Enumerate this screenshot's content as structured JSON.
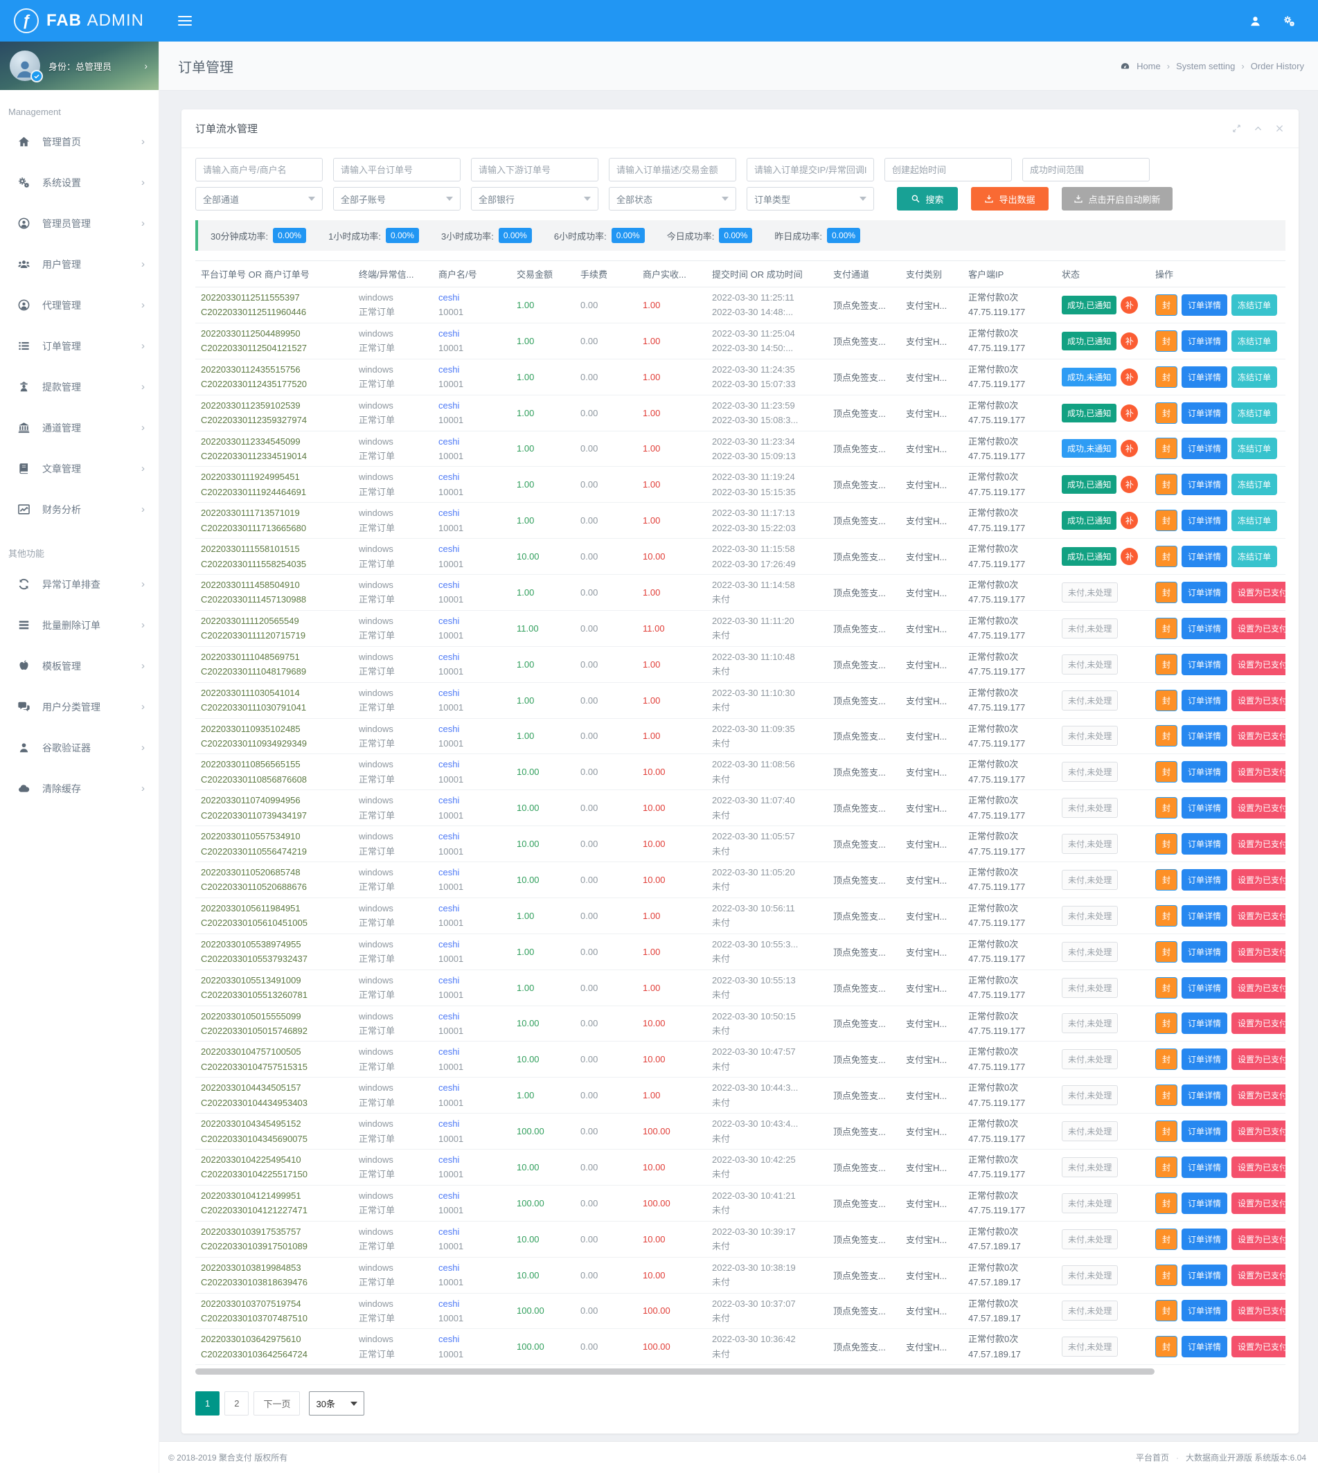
{
  "topbar": {
    "logo_primary": "FAB",
    "logo_secondary": "ADMIN"
  },
  "user_panel": {
    "label": "身份：总管理员"
  },
  "sidebar": {
    "groups": [
      {
        "header": "Management",
        "items": [
          {
            "key": "admin-home",
            "icon": "home",
            "label": "管理首页"
          },
          {
            "key": "system-settings",
            "icon": "gears",
            "label": "系统设置"
          },
          {
            "key": "admin-manage",
            "icon": "user-circle",
            "label": "管理员管理"
          },
          {
            "key": "user-manage",
            "icon": "users",
            "label": "用户管理"
          },
          {
            "key": "agent-manage",
            "icon": "user-circle",
            "label": "代理管理"
          },
          {
            "key": "order-manage",
            "icon": "list",
            "label": "订单管理"
          },
          {
            "key": "withdraw-manage",
            "icon": "user-secret",
            "label": "提款管理"
          },
          {
            "key": "channel-manage",
            "icon": "bank",
            "label": "通道管理"
          },
          {
            "key": "article-manage",
            "icon": "book",
            "label": "文章管理"
          },
          {
            "key": "finance-analysis",
            "icon": "chart-line",
            "label": "财务分析"
          }
        ]
      },
      {
        "header": "其他功能",
        "items": [
          {
            "key": "abnormal-order-check",
            "icon": "refresh",
            "label": "异常订单排查"
          },
          {
            "key": "batch-delete-order",
            "icon": "bars",
            "label": "批量删除订单"
          },
          {
            "key": "template-manage",
            "icon": "apple",
            "label": "模板管理"
          },
          {
            "key": "user-category-manage",
            "icon": "comments",
            "label": "用户分类管理"
          },
          {
            "key": "google-authenticator",
            "icon": "user",
            "label": "谷歌验证器"
          },
          {
            "key": "clear-cache",
            "icon": "cloud",
            "label": "清除缓存"
          }
        ]
      }
    ]
  },
  "page": {
    "title": "订单管理",
    "breadcrumb": [
      "Home",
      "System setting",
      "Order History"
    ]
  },
  "panel": {
    "title": "订单流水管理"
  },
  "filters": {
    "inputs": [
      {
        "key": "merchant",
        "placeholder": "请输入商户号/商户名"
      },
      {
        "key": "platform-order",
        "placeholder": "请输入平台订单号"
      },
      {
        "key": "downstream-order",
        "placeholder": "请输入下游订单号"
      },
      {
        "key": "desc-amount",
        "placeholder": "请输入订单描述/交易金额"
      },
      {
        "key": "submit-ip",
        "placeholder": "请输入订单提交IP/异常回调IP"
      },
      {
        "key": "create-time",
        "placeholder": "创建起始时间"
      },
      {
        "key": "success-time",
        "placeholder": "成功时间范围"
      }
    ],
    "selects": [
      {
        "key": "channel",
        "label": "全部通道"
      },
      {
        "key": "sub-account",
        "label": "全部子账号"
      },
      {
        "key": "bank",
        "label": "全部银行"
      },
      {
        "key": "status",
        "label": "全部状态"
      },
      {
        "key": "order-type",
        "label": "订单类型"
      }
    ],
    "buttons": {
      "search": "搜索",
      "export": "导出数据",
      "auto_refresh": "点击开启自动刷新"
    }
  },
  "stats": [
    {
      "label": "30分钟成功率:",
      "value": "0.00%"
    },
    {
      "label": "1小时成功率:",
      "value": "0.00%"
    },
    {
      "label": "3小时成功率:",
      "value": "0.00%"
    },
    {
      "label": "6小时成功率:",
      "value": "0.00%"
    },
    {
      "label": "今日成功率:",
      "value": "0.00%"
    },
    {
      "label": "昨日成功率:",
      "value": "0.00%"
    }
  ],
  "table": {
    "columns": [
      "平台订单号 OR 商户订单号",
      "终端/异常信...",
      "商户名/号",
      "交易金额",
      "手续费",
      "商户实收...",
      "提交时间 OR 成功时间",
      "支付通道",
      "支付类别",
      "客户端IP",
      "状态",
      "操作"
    ],
    "shared": {
      "terminal": "windows",
      "order_type": "正常订单",
      "merchant": "ceshi",
      "merchant_no": "10001",
      "fee": "0.00",
      "channel": "顶点免签支...",
      "pay_class": "支付宝H...",
      "pay_note": "正常付款0次",
      "patch": "补"
    },
    "actions": {
      "ok": [
        "封",
        "订单详情",
        "冻结订单"
      ],
      "unpaid": [
        "封",
        "订单详情",
        "设置为已支付"
      ]
    },
    "rows": [
      {
        "pid": "20220330112511555397",
        "cid": "C20220330112511960446",
        "amt": "1.00",
        "t1": "2022-03-30 11:25:11",
        "t2": "2022-03-30 14:48:...",
        "status": "成功,已通知",
        "state": "ok-notified",
        "ip": "47.75.119.177"
      },
      {
        "pid": "20220330112504489950",
        "cid": "C20220330112504121527",
        "amt": "1.00",
        "t1": "2022-03-30 11:25:04",
        "t2": "2022-03-30 14:50:...",
        "status": "成功,已通知",
        "state": "ok-notified",
        "ip": "47.75.119.177"
      },
      {
        "pid": "20220330112435515756",
        "cid": "C20220330112435177520",
        "amt": "1.00",
        "t1": "2022-03-30 11:24:35",
        "t2": "2022-03-30 15:07:33",
        "status": "成功,未通知",
        "state": "ok-unnotified",
        "ip": "47.75.119.177"
      },
      {
        "pid": "20220330112359102539",
        "cid": "C20220330112359327974",
        "amt": "1.00",
        "t1": "2022-03-30 11:23:59",
        "t2": "2022-03-30 15:08:3...",
        "status": "成功,已通知",
        "state": "ok-notified",
        "ip": "47.75.119.177"
      },
      {
        "pid": "20220330112334545099",
        "cid": "C20220330112334519014",
        "amt": "1.00",
        "t1": "2022-03-30 11:23:34",
        "t2": "2022-03-30 15:09:13",
        "status": "成功,未通知",
        "state": "ok-unnotified",
        "ip": "47.75.119.177"
      },
      {
        "pid": "20220330111924995451",
        "cid": "C20220330111924464691",
        "amt": "1.00",
        "t1": "2022-03-30 11:19:24",
        "t2": "2022-03-30 15:15:35",
        "status": "成功,已通知",
        "state": "ok-notified",
        "ip": "47.75.119.177"
      },
      {
        "pid": "20220330111713571019",
        "cid": "C20220330111713665680",
        "amt": "1.00",
        "t1": "2022-03-30 11:17:13",
        "t2": "2022-03-30 15:22:03",
        "status": "成功,已通知",
        "state": "ok-notified",
        "ip": "47.75.119.177"
      },
      {
        "pid": "20220330111558101515",
        "cid": "C20220330111558254035",
        "amt": "10.00",
        "t1": "2022-03-30 11:15:58",
        "t2": "2022-03-30 17:26:49",
        "status": "成功,已通知",
        "state": "ok-notified",
        "ip": "47.75.119.177"
      },
      {
        "pid": "20220330111458504910",
        "cid": "C20220330111457130988",
        "amt": "1.00",
        "t1": "2022-03-30 11:14:58",
        "t2": "未付",
        "status": "未付,未处理",
        "state": "unpaid",
        "ip": "47.75.119.177"
      },
      {
        "pid": "20220330111120565549",
        "cid": "C20220330111120715719",
        "amt": "11.00",
        "t1": "2022-03-30 11:11:20",
        "t2": "未付",
        "status": "未付,未处理",
        "state": "unpaid",
        "ip": "47.75.119.177"
      },
      {
        "pid": "20220330111048569751",
        "cid": "C20220330111048179689",
        "amt": "1.00",
        "t1": "2022-03-30 11:10:48",
        "t2": "未付",
        "status": "未付,未处理",
        "state": "unpaid",
        "ip": "47.75.119.177"
      },
      {
        "pid": "20220330111030541014",
        "cid": "C20220330111030791041",
        "amt": "1.00",
        "t1": "2022-03-30 11:10:30",
        "t2": "未付",
        "status": "未付,未处理",
        "state": "unpaid",
        "ip": "47.75.119.177"
      },
      {
        "pid": "20220330110935102485",
        "cid": "C20220330110934929349",
        "amt": "1.00",
        "t1": "2022-03-30 11:09:35",
        "t2": "未付",
        "status": "未付,未处理",
        "state": "unpaid",
        "ip": "47.75.119.177"
      },
      {
        "pid": "20220330110856565155",
        "cid": "C20220330110856876608",
        "amt": "10.00",
        "t1": "2022-03-30 11:08:56",
        "t2": "未付",
        "status": "未付,未处理",
        "state": "unpaid",
        "ip": "47.75.119.177"
      },
      {
        "pid": "20220330110740994956",
        "cid": "C20220330110739434197",
        "amt": "10.00",
        "t1": "2022-03-30 11:07:40",
        "t2": "未付",
        "status": "未付,未处理",
        "state": "unpaid",
        "ip": "47.75.119.177"
      },
      {
        "pid": "20220330110557534910",
        "cid": "C20220330110556474219",
        "amt": "10.00",
        "t1": "2022-03-30 11:05:57",
        "t2": "未付",
        "status": "未付,未处理",
        "state": "unpaid",
        "ip": "47.75.119.177"
      },
      {
        "pid": "20220330110520685748",
        "cid": "C20220330110520688676",
        "amt": "10.00",
        "t1": "2022-03-30 11:05:20",
        "t2": "未付",
        "status": "未付,未处理",
        "state": "unpaid",
        "ip": "47.75.119.177"
      },
      {
        "pid": "20220330105611984951",
        "cid": "C20220330105610451005",
        "amt": "1.00",
        "t1": "2022-03-30 10:56:11",
        "t2": "未付",
        "status": "未付,未处理",
        "state": "unpaid",
        "ip": "47.75.119.177"
      },
      {
        "pid": "20220330105538974955",
        "cid": "C20220330105537932437",
        "amt": "1.00",
        "t1": "2022-03-30 10:55:3...",
        "t2": "未付",
        "status": "未付,未处理",
        "state": "unpaid",
        "ip": "47.75.119.177"
      },
      {
        "pid": "20220330105513491009",
        "cid": "C20220330105513260781",
        "amt": "1.00",
        "t1": "2022-03-30 10:55:13",
        "t2": "未付",
        "status": "未付,未处理",
        "state": "unpaid",
        "ip": "47.75.119.177"
      },
      {
        "pid": "20220330105015555099",
        "cid": "C20220330105015746892",
        "amt": "10.00",
        "t1": "2022-03-30 10:50:15",
        "t2": "未付",
        "status": "未付,未处理",
        "state": "unpaid",
        "ip": "47.75.119.177"
      },
      {
        "pid": "20220330104757100505",
        "cid": "C20220330104757515315",
        "amt": "10.00",
        "t1": "2022-03-30 10:47:57",
        "t2": "未付",
        "status": "未付,未处理",
        "state": "unpaid",
        "ip": "47.75.119.177"
      },
      {
        "pid": "20220330104434505157",
        "cid": "C20220330104434953403",
        "amt": "1.00",
        "t1": "2022-03-30 10:44:3...",
        "t2": "未付",
        "status": "未付,未处理",
        "state": "unpaid",
        "ip": "47.75.119.177"
      },
      {
        "pid": "20220330104345495152",
        "cid": "C20220330104345690075",
        "amt": "100.00",
        "t1": "2022-03-30 10:43:4...",
        "t2": "未付",
        "status": "未付,未处理",
        "state": "unpaid",
        "ip": "47.75.119.177"
      },
      {
        "pid": "20220330104225495410",
        "cid": "C20220330104225517150",
        "amt": "10.00",
        "t1": "2022-03-30 10:42:25",
        "t2": "未付",
        "status": "未付,未处理",
        "state": "unpaid",
        "ip": "47.75.119.177"
      },
      {
        "pid": "20220330104121499951",
        "cid": "C20220330104121227471",
        "amt": "100.00",
        "t1": "2022-03-30 10:41:21",
        "t2": "未付",
        "status": "未付,未处理",
        "state": "unpaid",
        "ip": "47.75.119.177"
      },
      {
        "pid": "20220330103917535757",
        "cid": "C20220330103917501089",
        "amt": "10.00",
        "t1": "2022-03-30 10:39:17",
        "t2": "未付",
        "status": "未付,未处理",
        "state": "unpaid",
        "ip": "47.57.189.17"
      },
      {
        "pid": "20220330103819984853",
        "cid": "C20220330103818639476",
        "amt": "10.00",
        "t1": "2022-03-30 10:38:19",
        "t2": "未付",
        "status": "未付,未处理",
        "state": "unpaid",
        "ip": "47.57.189.17"
      },
      {
        "pid": "20220330103707519754",
        "cid": "C20220330103707487510",
        "amt": "100.00",
        "t1": "2022-03-30 10:37:07",
        "t2": "未付",
        "status": "未付,未处理",
        "state": "unpaid",
        "ip": "47.57.189.17"
      },
      {
        "pid": "20220330103642975610",
        "cid": "C20220330103642564724",
        "amt": "100.00",
        "t1": "2022-03-30 10:36:42",
        "t2": "未付",
        "status": "未付,未处理",
        "state": "unpaid",
        "ip": "47.57.189.17"
      }
    ]
  },
  "pagination": {
    "pages": [
      "1",
      "2"
    ],
    "active": "1",
    "next_label": "下一页",
    "page_size": "30条"
  },
  "footer": {
    "copyright": "© 2018-2019 聚合支付 版权所有",
    "links": [
      "平台首页",
      "大数据商业开源版 系统版本:6.04"
    ]
  }
}
